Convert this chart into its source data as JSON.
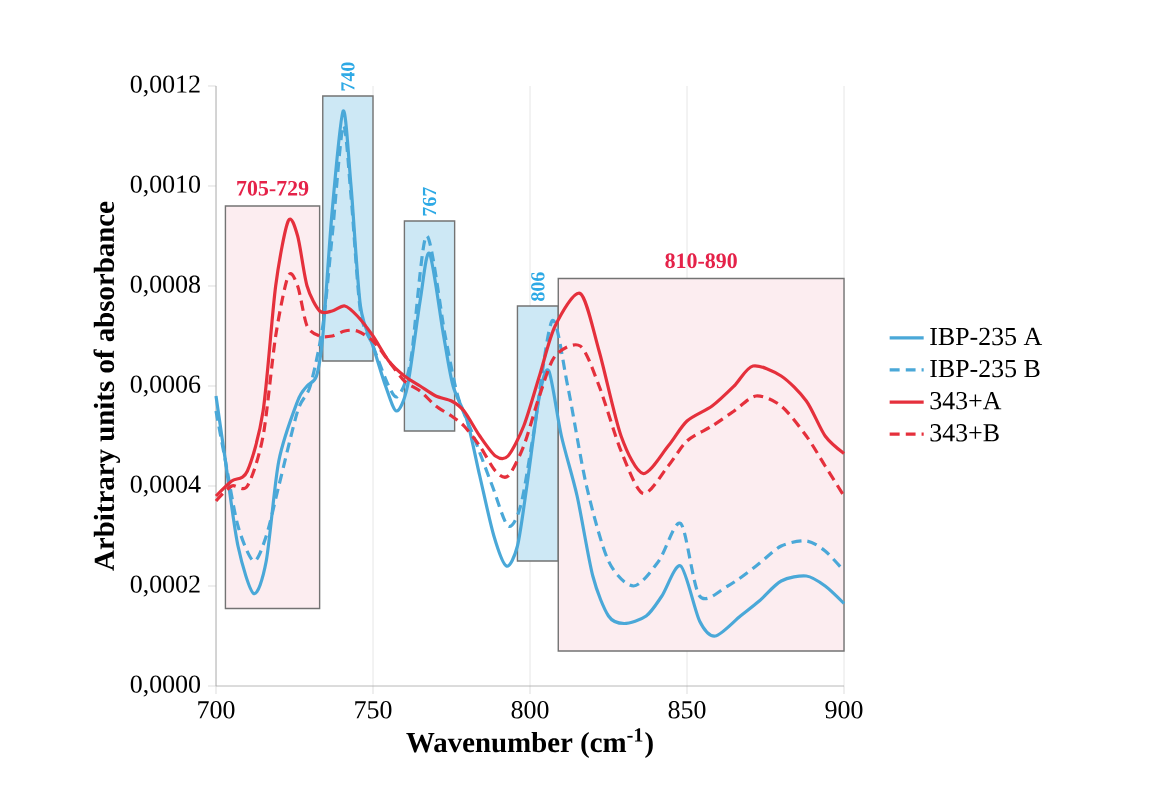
{
  "chart_data": {
    "type": "line",
    "xlabel": "Wavenumber (cm$^{-1}$)",
    "ylabel": "Arbitrary units of absorbance",
    "xlim": [
      700,
      900
    ],
    "xticks": [
      700,
      750,
      800,
      850,
      900
    ],
    "ylim": [
      0,
      0.0012
    ],
    "yticks": [
      {
        "value": 0,
        "label": "0,0000"
      },
      {
        "value": 0.0002,
        "label": "0,0002"
      },
      {
        "value": 0.0004,
        "label": "0,0004"
      },
      {
        "value": 0.0006,
        "label": "0,0006"
      },
      {
        "value": 0.0008,
        "label": "0,0008"
      },
      {
        "value": 0.001,
        "label": "0,0010"
      },
      {
        "value": 0.0012,
        "label": "0,0012"
      }
    ],
    "grid": "x",
    "legend": "right",
    "bands": [
      {
        "axis": "x",
        "from": 703,
        "to": 733,
        "label": "705-729",
        "color": "#fcedf0"
      },
      {
        "axis": "x",
        "from": 734,
        "to": 750,
        "label": "740",
        "color": "#cde8f5"
      },
      {
        "axis": "x",
        "from": 760,
        "to": 776,
        "label": "767",
        "color": "#cde8f5"
      },
      {
        "axis": "x",
        "from": 796,
        "to": 809,
        "label": "806",
        "color": "#cde8f5"
      },
      {
        "axis": "x",
        "from": 809,
        "to": 900,
        "label": "810-890",
        "color": "#fcedf0"
      }
    ],
    "series": [
      {
        "name": "IBP-235 A",
        "color": "#4aa8d8",
        "line_style": "solid",
        "x": [
          700,
          703,
          707,
          712,
          716,
          720,
          726,
          729,
          732,
          734,
          737,
          740.5,
          743,
          746,
          750,
          754,
          757.5,
          761,
          765,
          768,
          772.5,
          775.5,
          780,
          784,
          788.5,
          792.5,
          796,
          799,
          803,
          806,
          810,
          815,
          820,
          825,
          830,
          837,
          842,
          848,
          854,
          859,
          867,
          873,
          880,
          888,
          894,
          900
        ],
        "values": [
          0.00058,
          0.00045,
          0.00028,
          0.000185,
          0.00025,
          0.00045,
          0.00057,
          0.0006,
          0.00062,
          0.0007,
          0.00095,
          0.00115,
          0.001,
          0.00076,
          0.00068,
          0.0006,
          0.00055,
          0.0006,
          0.00077,
          0.000865,
          0.0007,
          0.0006,
          0.00053,
          0.00042,
          0.0003,
          0.00024,
          0.00028,
          0.0004,
          0.00058,
          0.00063,
          0.0005,
          0.00038,
          0.00022,
          0.00014,
          0.000125,
          0.00014,
          0.00018,
          0.00024,
          0.00013,
          0.0001,
          0.00014,
          0.00017,
          0.00021,
          0.00022,
          0.0002,
          0.000165
        ]
      },
      {
        "name": "IBP-235 B",
        "color": "#4aa8d8",
        "line_style": "dashed",
        "x": [
          700,
          703,
          707,
          712,
          716,
          720,
          726,
          730,
          734,
          737,
          740.5,
          743,
          746,
          750,
          755,
          758,
          762,
          767,
          773,
          777,
          782,
          788,
          793,
          797,
          801,
          807,
          812,
          818,
          825,
          833,
          841,
          848,
          854,
          863,
          872,
          880,
          888,
          894,
          900
        ],
        "values": [
          0.00055,
          0.00045,
          0.00032,
          0.00025,
          0.0003,
          0.0004,
          0.00055,
          0.0006,
          0.00072,
          0.0009,
          0.00112,
          0.00098,
          0.00075,
          0.00068,
          0.0006,
          0.00058,
          0.00065,
          0.0009,
          0.0007,
          0.00058,
          0.0005,
          0.0004,
          0.00032,
          0.00036,
          0.0005,
          0.00073,
          0.0006,
          0.0004,
          0.00025,
          0.0002,
          0.00025,
          0.000325,
          0.00018,
          0.0002,
          0.00024,
          0.00028,
          0.00029,
          0.00027,
          0.00023
        ]
      },
      {
        "name": "343+A",
        "color": "#e5303c",
        "line_style": "solid",
        "x": [
          700,
          705,
          710,
          715,
          719,
          723,
          726,
          729,
          733,
          737,
          741,
          745,
          750,
          755,
          760,
          765,
          770,
          775,
          779,
          784,
          789,
          793,
          798,
          803,
          808,
          816,
          822,
          829,
          836,
          844,
          850,
          858,
          865,
          871,
          880,
          888,
          894,
          900
        ],
        "values": [
          0.00038,
          0.00041,
          0.00043,
          0.00055,
          0.0008,
          0.00093,
          0.0009,
          0.0008,
          0.00075,
          0.00075,
          0.00076,
          0.00074,
          0.0007,
          0.00065,
          0.00062,
          0.0006,
          0.00058,
          0.00057,
          0.00055,
          0.0005,
          0.00046,
          0.00046,
          0.00052,
          0.00062,
          0.00072,
          0.000785,
          0.00067,
          0.0005,
          0.000425,
          0.00048,
          0.00053,
          0.00056,
          0.0006,
          0.00064,
          0.00062,
          0.00057,
          0.0005,
          0.000465
        ]
      },
      {
        "name": "343+B",
        "color": "#e5303c",
        "line_style": "dashed",
        "x": [
          700,
          705,
          710,
          715,
          719,
          723,
          726,
          729,
          733,
          737,
          741,
          745,
          750,
          755,
          760,
          765,
          770,
          775,
          779,
          784,
          789,
          793,
          798,
          803,
          808,
          816,
          822,
          829,
          836,
          844,
          850,
          858,
          865,
          872,
          880,
          888,
          894,
          900
        ],
        "values": [
          0.00037,
          0.0004,
          0.0004,
          0.0005,
          0.0007,
          0.00082,
          0.0008,
          0.00072,
          0.0007,
          0.0007,
          0.00071,
          0.00071,
          0.00069,
          0.00065,
          0.00061,
          0.00059,
          0.00056,
          0.00054,
          0.00052,
          0.00048,
          0.00043,
          0.00042,
          0.00048,
          0.00058,
          0.00066,
          0.00068,
          0.0006,
          0.00047,
          0.000385,
          0.00044,
          0.00049,
          0.00052,
          0.00055,
          0.00058,
          0.00056,
          0.0005,
          0.00044,
          0.00038
        ]
      }
    ]
  }
}
